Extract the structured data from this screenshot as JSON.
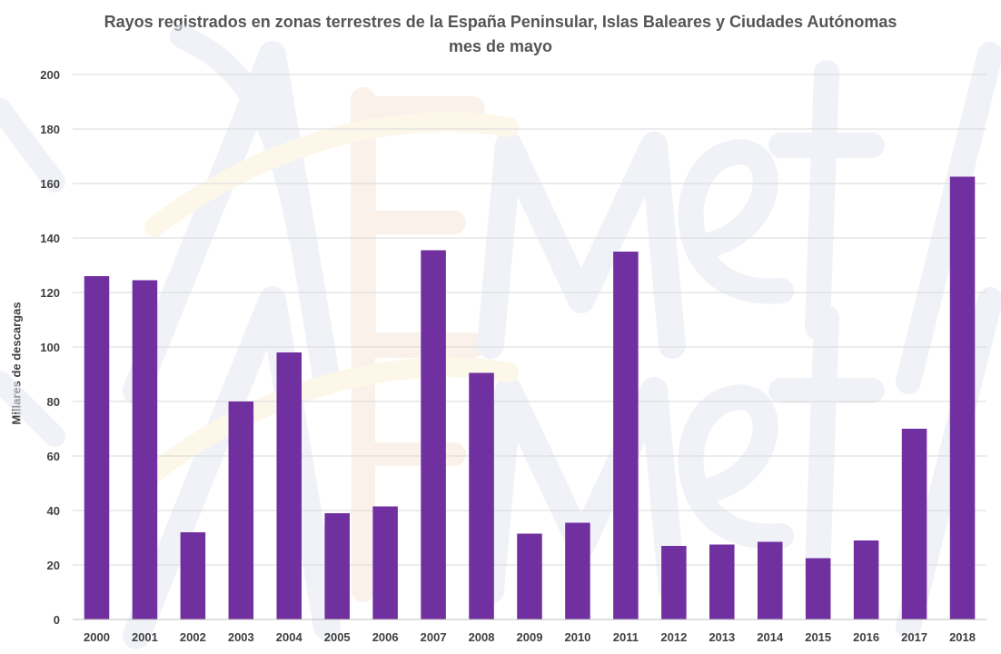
{
  "chart_data": {
    "type": "bar",
    "title": "Rayos registrados  en zonas terrestres de la España  Peninsular, Islas Baleares y Ciudades Autónomas",
    "subtitle": "mes de mayo",
    "xlabel": "",
    "ylabel": "Millares de descargas",
    "ylim": [
      0,
      200
    ],
    "yticks": [
      0,
      20,
      40,
      60,
      80,
      100,
      120,
      140,
      160,
      180,
      200
    ],
    "grid": true,
    "legend": "none",
    "bar_color": "#7030A0",
    "categories": [
      "2000",
      "2001",
      "2002",
      "2003",
      "2004",
      "2005",
      "2006",
      "2007",
      "2008",
      "2009",
      "2010",
      "2011",
      "2012",
      "2013",
      "2014",
      "2015",
      "2016",
      "2017",
      "2018"
    ],
    "values": [
      126,
      124.5,
      32,
      80,
      98,
      39,
      41.5,
      135.5,
      90.5,
      31.5,
      35.5,
      135,
      27,
      27.5,
      28.5,
      22.5,
      29,
      70,
      162.5
    ]
  }
}
